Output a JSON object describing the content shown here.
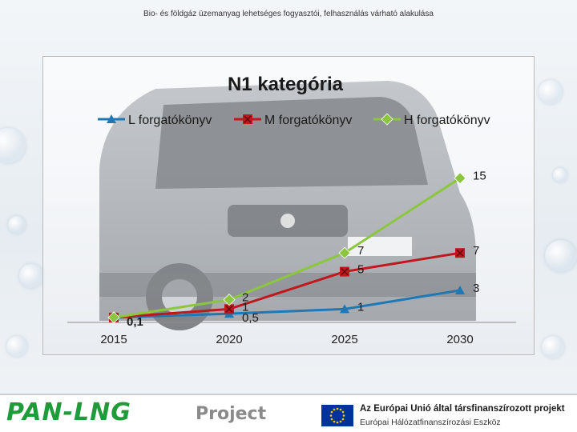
{
  "header": {
    "title": "Bio- és földgáz üzemanyag lehetséges fogyasztói, felhasználás várható alakulása"
  },
  "chart_data": {
    "type": "line",
    "title": "N1 kategória",
    "x": [
      "2015",
      "2020",
      "2025",
      "2030"
    ],
    "ylim": [
      0,
      16
    ],
    "grid": false,
    "legend_position": "top",
    "series": [
      {
        "name": "L forgatókönyv",
        "color": "#1f77b4",
        "marker": "triangle",
        "values": [
          0.1,
          0.5,
          1,
          3
        ],
        "labels": [
          "0,1",
          "0,5",
          "1",
          "3"
        ]
      },
      {
        "name": "M forgatókönyv",
        "color": "#c0171c",
        "marker": "square-x",
        "values": [
          0.1,
          1,
          5,
          7
        ],
        "labels": [
          "",
          "1",
          "5",
          "7"
        ]
      },
      {
        "name": "H forgatókönyv",
        "color": "#8cc63f",
        "marker": "diamond",
        "values": [
          0.1,
          2,
          7,
          15
        ],
        "labels": [
          "",
          "2",
          "7",
          "15"
        ]
      }
    ]
  },
  "footer": {
    "logo_main": "PAN-LNG",
    "logo_project": "Project",
    "eu_line1": "Az Európai Unió által társfinanszírozott projekt",
    "eu_line2": "Európai Hálózatfinanszírozási Eszköz"
  }
}
